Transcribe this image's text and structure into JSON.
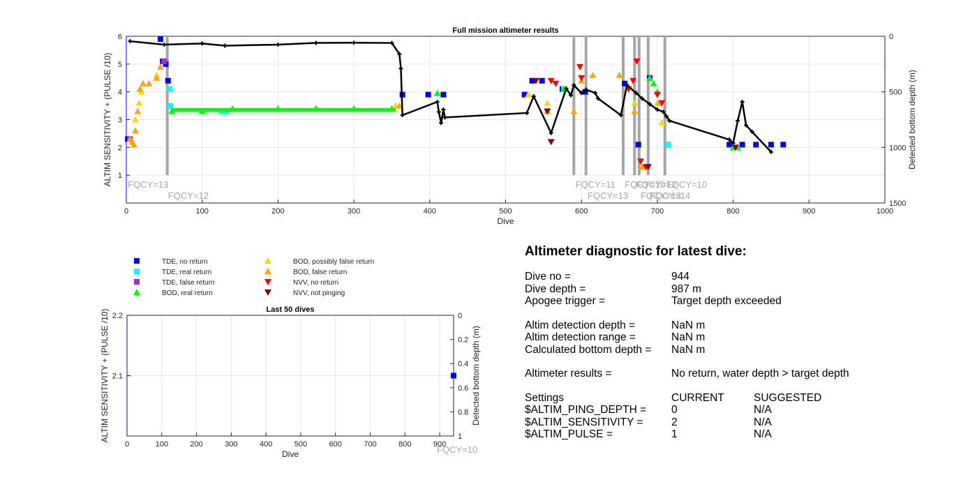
{
  "colors": {
    "tde_no_return": "#0000ff",
    "tde_real_return": "#00ffff",
    "tde_false_return": "#9932cc",
    "bod_real_return": "#00ff00",
    "bod_possibly_false": "#ffd700",
    "bod_false": "#ffa500",
    "nvv_no_return": "#ff0000",
    "nvv_not_pinging": "#8b0000",
    "bottom_depth": "#000000",
    "fqcy_line": "#a6a6a6",
    "left_axis": "#0000ff"
  },
  "legend": [
    {
      "label": "TDE, no return",
      "marker": "square",
      "color": "#0000ff"
    },
    {
      "label": "TDE, real return",
      "marker": "square",
      "color": "#00ffff"
    },
    {
      "label": "TDE, false return",
      "marker": "square",
      "color": "#9932cc"
    },
    {
      "label": "BOD, real return",
      "marker": "triangle-up",
      "color": "#00ff00"
    },
    {
      "label": "BOD, possibly false return",
      "marker": "triangle-up",
      "color": "#ffd700"
    },
    {
      "label": "BOD, false return",
      "marker": "triangle-up",
      "color": "#ffa500"
    },
    {
      "label": "NVV, no return",
      "marker": "triangle-down",
      "color": "#ff0000"
    },
    {
      "label": "NVV, not pinging",
      "marker": "triangle-down",
      "color": "#8b0000"
    }
  ],
  "chart_data": [
    {
      "type": "scatter",
      "title": "Full mission altimeter results",
      "xlabel": "Dive",
      "ylabel": "ALTIM SENSITIVITY + (PULSE /10)",
      "y2label": "Detected bottom depth (m)",
      "xlim": [
        0,
        1000
      ],
      "ylim": [
        0,
        6
      ],
      "y2lim": [
        1500,
        0
      ],
      "xticks": [
        0,
        100,
        200,
        300,
        400,
        500,
        600,
        700,
        800,
        900,
        1000
      ],
      "yticks": [
        1,
        2,
        3,
        4,
        5,
        6
      ],
      "y2ticks": [
        0,
        500,
        1000,
        1500
      ],
      "fqcy_lines": [
        54,
        590,
        606,
        655,
        670,
        676,
        688,
        710
      ],
      "fqcy_labels": [
        {
          "text": "FQCY=13",
          "x": 2,
          "y": 0.45
        },
        {
          "text": "FQCY=12",
          "x": 55,
          "y": 0.05
        },
        {
          "text": "FQCY=11",
          "x": 592,
          "y": 0.45
        },
        {
          "text": "FQCY=13",
          "x": 608,
          "y": 0.05
        },
        {
          "text": "FQCY=10",
          "x": 657,
          "y": 0.45
        },
        {
          "text": "FQCY=12",
          "x": 672,
          "y": 0.45
        },
        {
          "text": "FQCY=13",
          "x": 678,
          "y": 0.05
        },
        {
          "text": "FQCY=14",
          "x": 690,
          "y": 0.05
        },
        {
          "text": "FQCY=10",
          "x": 712,
          "y": 0.45
        }
      ],
      "series": [
        {
          "name": "TDE, no return",
          "points": [
            [
              2,
              2.3
            ],
            [
              45,
              5.9
            ],
            [
              48,
              5.1
            ],
            [
              52,
              5.0
            ],
            [
              55,
              4.4
            ],
            [
              364,
              3.9
            ],
            [
              398,
              3.9
            ],
            [
              418,
              3.9
            ],
            [
              525,
              3.9
            ],
            [
              535,
              4.4
            ],
            [
              548,
              4.4
            ],
            [
              575,
              4.1
            ],
            [
              605,
              4.0
            ],
            [
              657,
              4.3
            ],
            [
              675,
              2.1
            ],
            [
              690,
              4.5
            ],
            [
              714,
              2.1
            ],
            [
              795,
              2.1
            ],
            [
              812,
              2.1
            ],
            [
              830,
              2.1
            ],
            [
              850,
              2.1
            ],
            [
              866,
              2.1
            ]
          ]
        },
        {
          "name": "TDE, real return",
          "points": [
            [
              57,
              4.1
            ],
            [
              58,
              3.5
            ],
            [
              125,
              3.3
            ],
            [
              132,
              3.3
            ],
            [
              577,
              4.1
            ],
            [
              714,
              2.1
            ]
          ]
        },
        {
          "name": "TDE, false return",
          "points": [
            [
              5,
              2.3
            ],
            [
              50,
              5.1
            ]
          ]
        },
        {
          "name": "BOD, real return",
          "points": [
            [
              60,
              3.3
            ],
            [
              100,
              3.3
            ],
            [
              140,
              3.4
            ],
            [
              200,
              3.4
            ],
            [
              250,
              3.4
            ],
            [
              300,
              3.4
            ],
            [
              350,
              3.4
            ],
            [
              410,
              3.95
            ],
            [
              577,
              4.1
            ],
            [
              690,
              4.5
            ],
            [
              695,
              4.3
            ],
            [
              700,
              4.0
            ],
            [
              800,
              2.0
            ],
            [
              806,
              2.0
            ]
          ]
        },
        {
          "name": "BOD, possibly false return",
          "points": [
            [
              12,
              3.0
            ],
            [
              15,
              3.3
            ],
            [
              17,
              3.6
            ],
            [
              20,
              4.0
            ],
            [
              40,
              4.6
            ],
            [
              355,
              3.5
            ],
            [
              530,
              3.9
            ],
            [
              555,
              3.6
            ],
            [
              670,
              3.6
            ],
            [
              680,
              1.3
            ],
            [
              683,
              1.3
            ],
            [
              700,
              3.6
            ],
            [
              706,
              2.9
            ]
          ]
        },
        {
          "name": "BOD, false return",
          "points": [
            [
              5,
              2.3
            ],
            [
              8,
              2.2
            ],
            [
              10,
              2.1
            ],
            [
              12,
              2.6
            ],
            [
              15,
              3.3
            ],
            [
              18,
              4.1
            ],
            [
              22,
              4.3
            ],
            [
              30,
              4.3
            ],
            [
              40,
              4.5
            ],
            [
              45,
              4.9
            ],
            [
              360,
              3.5
            ],
            [
              555,
              3.3
            ],
            [
              590,
              3.3
            ],
            [
              600,
              4.4
            ],
            [
              615,
              4.6
            ],
            [
              650,
              4.6
            ],
            [
              670,
              3.3
            ],
            [
              680,
              1.3
            ],
            [
              702,
              3.6
            ]
          ]
        },
        {
          "name": "NVV, no return",
          "points": [
            [
              560,
              4.4
            ],
            [
              566,
              4.3
            ],
            [
              598,
              4.9
            ],
            [
              600,
              4.5
            ],
            [
              662,
              4.1
            ],
            [
              668,
              4.4
            ],
            [
              673,
              5.1
            ],
            [
              678,
              1.5
            ],
            [
              685,
              1.3
            ],
            [
              700,
              3.9
            ],
            [
              706,
              3.6
            ]
          ]
        },
        {
          "name": "NVV, not pinging",
          "points": [
            [
              540,
              4.4
            ],
            [
              560,
              2.2
            ],
            [
              555,
              3.3
            ],
            [
              688,
              1.3
            ],
            [
              803,
              2.0
            ]
          ]
        },
        {
          "name": "Detected bottom depth",
          "points": [
            [
              5,
              45
            ],
            [
              50,
              75
            ],
            [
              100,
              65
            ],
            [
              130,
              85
            ],
            [
              200,
              75
            ],
            [
              250,
              60
            ],
            [
              300,
              58
            ],
            [
              350,
              60
            ],
            [
              360,
              160
            ],
            [
              362,
              290
            ],
            [
              364,
              710
            ],
            [
              410,
              590
            ],
            [
              412,
              680
            ],
            [
              415,
              780
            ],
            [
              418,
              660
            ],
            [
              420,
              730
            ],
            [
              528,
              690
            ],
            [
              537,
              540
            ],
            [
              560,
              870
            ],
            [
              580,
              470
            ],
            [
              586,
              530
            ],
            [
              590,
              440
            ],
            [
              600,
              510
            ],
            [
              606,
              480
            ],
            [
              618,
              510
            ],
            [
              622,
              560
            ],
            [
              652,
              710
            ],
            [
              660,
              440
            ],
            [
              672,
              510
            ],
            [
              680,
              560
            ],
            [
              690,
              610
            ],
            [
              700,
              660
            ],
            [
              708,
              680
            ],
            [
              712,
              720
            ],
            [
              716,
              760
            ],
            [
              795,
              930
            ],
            [
              800,
              960
            ],
            [
              806,
              760
            ],
            [
              812,
              590
            ],
            [
              817,
              800
            ],
            [
              825,
              860
            ],
            [
              850,
              1040
            ]
          ]
        }
      ]
    },
    {
      "type": "scatter",
      "title": "Last 50 dives",
      "xlabel": "Dive",
      "ylabel": "ALTIM SENSITIVITY + (PULSE /10)",
      "y2label": "Detected bottom depth (m)",
      "xlim": [
        0,
        940
      ],
      "ylim": [
        2.0,
        2.2
      ],
      "y2lim": [
        1,
        0
      ],
      "xticks": [
        0,
        100,
        200,
        300,
        400,
        500,
        600,
        700,
        800,
        900
      ],
      "yticks": [
        2.1,
        2.2
      ],
      "y2ticks": [
        0,
        0.2,
        0.4,
        0.6,
        0.8,
        1
      ],
      "fqcy_labels": [
        {
          "text": "FQCY=10"
        }
      ],
      "series": [
        {
          "name": "TDE, no return",
          "points": [
            [
              944,
              2.1
            ]
          ]
        }
      ]
    }
  ],
  "diagnostic": {
    "title": "Altimeter diagnostic for latest dive:",
    "rows": [
      [
        "Dive no =",
        "944",
        ""
      ],
      [
        "Dive depth =",
        "987 m",
        ""
      ],
      [
        "Apogee trigger =",
        "Target depth exceeded",
        ""
      ],
      [
        "",
        "",
        ""
      ],
      [
        "Altim detection depth =",
        "NaN m",
        ""
      ],
      [
        "Altim detection range =",
        "NaN m",
        ""
      ],
      [
        "Calculated bottom depth =",
        "NaN m",
        ""
      ],
      [
        "",
        "",
        ""
      ],
      [
        "Altimeter results =",
        "No return, water depth > target depth",
        ""
      ],
      [
        "",
        "",
        ""
      ],
      [
        "Settings",
        "CURRENT",
        "SUGGESTED"
      ],
      [
        "$ALTIM_PING_DEPTH =",
        "0",
        "N/A"
      ],
      [
        "$ALTIM_SENSITIVITY =",
        "2",
        "N/A"
      ],
      [
        "$ALTIM_PULSE =",
        "1",
        "N/A"
      ]
    ]
  }
}
